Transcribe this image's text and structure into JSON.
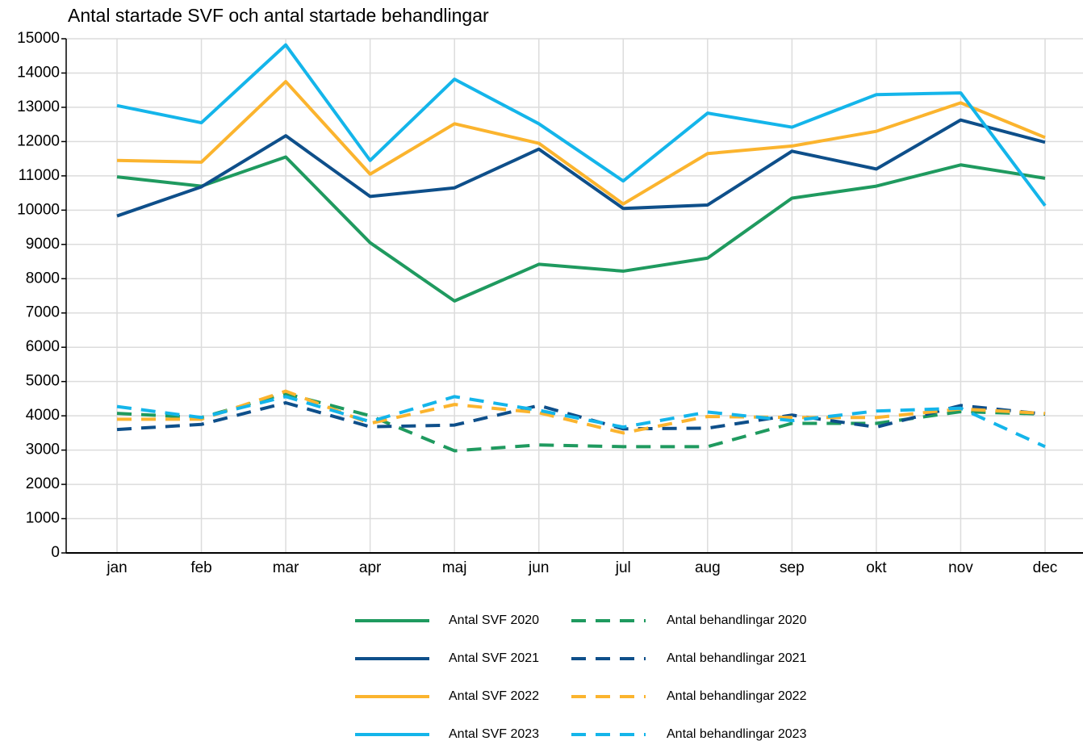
{
  "chart_data": {
    "type": "line",
    "title": "Antal startade SVF och antal startade behandlingar",
    "categories": [
      "jan",
      "feb",
      "mar",
      "apr",
      "maj",
      "jun",
      "jul",
      "aug",
      "sep",
      "okt",
      "nov",
      "dec"
    ],
    "series": [
      {
        "name": "Antal SVF 2020",
        "color": "#1f9a5f",
        "linestyle": "solid",
        "values": [
          10970,
          10700,
          11550,
          9050,
          7350,
          8420,
          8220,
          8600,
          10350,
          10700,
          11320,
          10930
        ]
      },
      {
        "name": "Antal behandlingar 2020",
        "color": "#1f9a5f",
        "linestyle": "dashed",
        "values": [
          4070,
          3950,
          4650,
          4000,
          2980,
          3150,
          3100,
          3100,
          3780,
          3780,
          4120,
          4050
        ]
      },
      {
        "name": "Antal SVF 2021",
        "color": "#0e4f8a",
        "linestyle": "solid",
        "values": [
          9830,
          10680,
          12170,
          10400,
          10650,
          11780,
          10050,
          10150,
          11720,
          11200,
          12630,
          11980
        ]
      },
      {
        "name": "Antal behandlingar 2021",
        "color": "#0e4f8a",
        "linestyle": "dashed",
        "values": [
          3600,
          3750,
          4380,
          3680,
          3730,
          4300,
          3620,
          3640,
          4020,
          3670,
          4300,
          4050
        ]
      },
      {
        "name": "Antal SVF 2022",
        "color": "#fbb42e",
        "linestyle": "solid",
        "values": [
          11450,
          11400,
          13750,
          11050,
          12520,
          11950,
          10180,
          11650,
          11870,
          12300,
          13130,
          12120
        ]
      },
      {
        "name": "Antal behandlingar 2022",
        "color": "#fbb42e",
        "linestyle": "dashed",
        "values": [
          3900,
          3900,
          4720,
          3780,
          4330,
          4090,
          3500,
          3980,
          3950,
          3950,
          4200,
          4070
        ]
      },
      {
        "name": "Antal SVF 2023",
        "color": "#14b5ea",
        "linestyle": "solid",
        "values": [
          13050,
          12550,
          14820,
          11450,
          13820,
          12520,
          10850,
          12830,
          12420,
          13370,
          13420,
          10130
        ]
      },
      {
        "name": "Antal behandlingar 2023",
        "color": "#14b5ea",
        "linestyle": "dashed",
        "values": [
          4270,
          3950,
          4560,
          3830,
          4560,
          4160,
          3670,
          4110,
          3860,
          4140,
          4220,
          3100
        ]
      }
    ],
    "ylim": [
      0,
      15000
    ],
    "yticks": [
      0,
      1000,
      2000,
      3000,
      4000,
      5000,
      6000,
      7000,
      8000,
      9000,
      10000,
      11000,
      12000,
      13000,
      14000,
      15000
    ],
    "grid": true,
    "legend": "bottom"
  }
}
